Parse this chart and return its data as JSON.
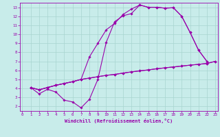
{
  "xlabel": "Windchill (Refroidissement éolien,°C)",
  "bg_color": "#c8ecea",
  "grid_color": "#a8d4d0",
  "line_color": "#9900aa",
  "xlim": [
    -0.3,
    23.3
  ],
  "ylim": [
    1.5,
    13.5
  ],
  "xticks": [
    0,
    1,
    2,
    3,
    4,
    5,
    6,
    7,
    8,
    9,
    10,
    11,
    12,
    13,
    14,
    15,
    16,
    17,
    18,
    19,
    20,
    21,
    22,
    23
  ],
  "yticks": [
    2,
    3,
    4,
    5,
    6,
    7,
    8,
    9,
    10,
    11,
    12,
    13
  ],
  "series": [
    {
      "x": [
        1,
        2,
        3,
        4,
        5,
        6,
        7,
        8,
        9,
        10,
        11,
        12,
        13,
        14,
        15,
        16,
        17,
        18,
        19,
        20,
        21,
        22
      ],
      "y": [
        4.1,
        3.4,
        3.9,
        3.6,
        2.7,
        2.5,
        1.85,
        2.8,
        5.0,
        9.1,
        11.4,
        12.05,
        12.3,
        13.25,
        13.0,
        13.0,
        12.9,
        12.95,
        12.0,
        10.2,
        8.25,
        7.0
      ]
    },
    {
      "x": [
        1,
        2,
        3,
        4,
        5,
        6,
        7,
        8,
        9,
        10,
        11,
        12,
        13,
        14,
        15,
        16,
        17,
        18,
        19,
        20,
        21,
        22,
        23
      ],
      "y": [
        4.1,
        3.85,
        4.1,
        4.35,
        4.55,
        4.75,
        5.0,
        5.15,
        5.3,
        5.45,
        5.55,
        5.7,
        5.83,
        5.95,
        6.05,
        6.18,
        6.28,
        6.38,
        6.48,
        6.58,
        6.67,
        6.77,
        7.0
      ]
    },
    {
      "x": [
        1,
        2,
        3,
        4,
        5,
        6,
        7,
        8,
        9,
        10,
        11,
        12,
        13,
        14,
        15,
        16,
        17,
        18,
        19,
        20,
        21,
        22
      ],
      "y": [
        4.1,
        3.85,
        4.1,
        4.35,
        4.55,
        4.75,
        5.0,
        7.5,
        9.0,
        10.5,
        11.2,
        12.2,
        12.8,
        13.25,
        13.0,
        13.0,
        12.9,
        12.95,
        12.0,
        10.2,
        8.25,
        7.0
      ]
    },
    {
      "x": [
        1,
        2,
        3,
        4,
        5,
        6,
        7,
        8,
        9,
        10,
        11,
        12,
        13,
        14,
        15,
        16,
        17,
        18,
        19,
        20,
        21,
        22,
        23
      ],
      "y": [
        4.1,
        3.85,
        4.1,
        4.35,
        4.55,
        4.75,
        5.0,
        5.15,
        5.3,
        5.45,
        5.55,
        5.7,
        5.83,
        5.95,
        6.05,
        6.18,
        6.28,
        6.38,
        6.48,
        6.58,
        6.67,
        6.77,
        7.0
      ]
    }
  ]
}
